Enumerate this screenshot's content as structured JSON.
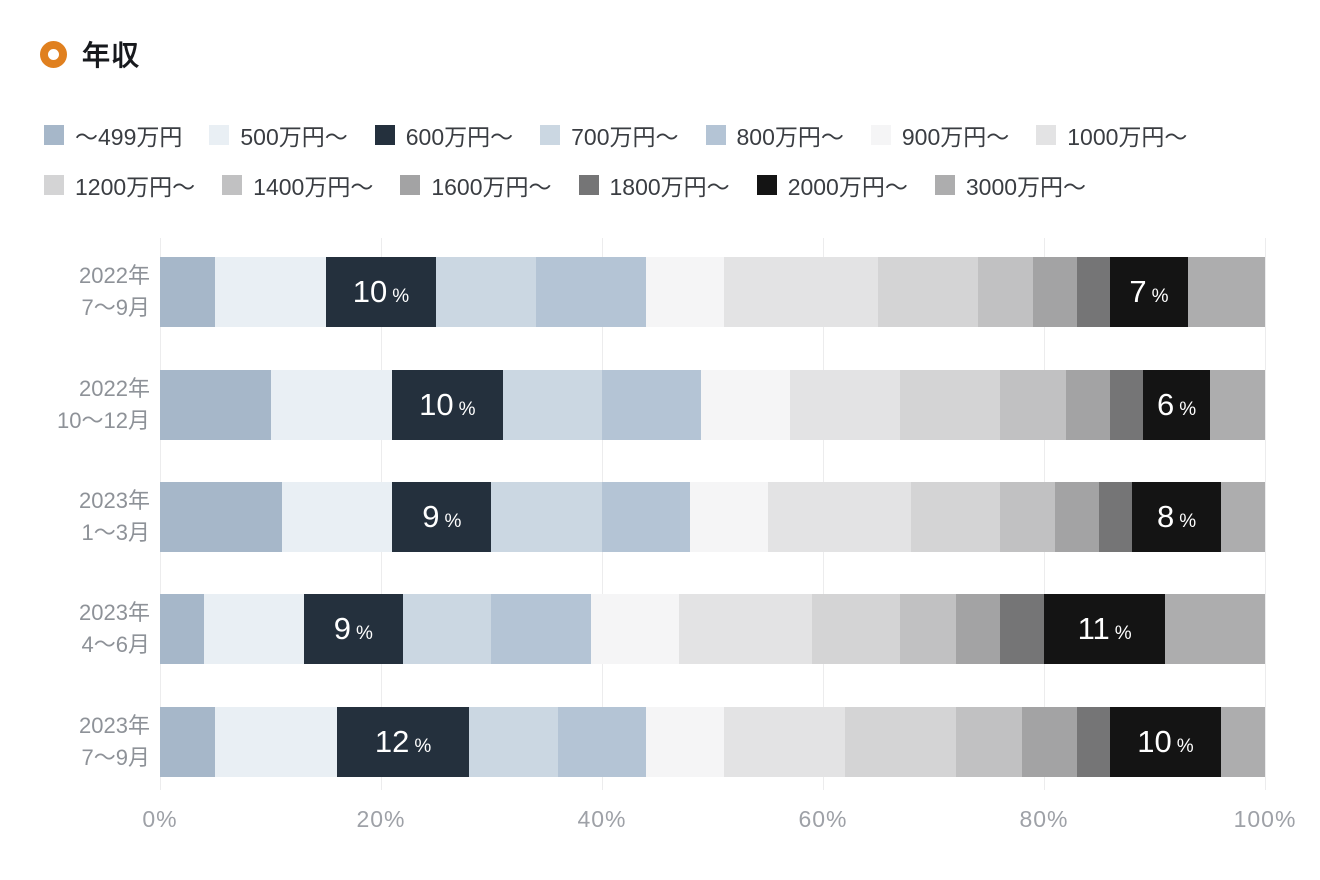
{
  "header": {
    "title": "年収",
    "icon": "ring-icon",
    "accent_color": "#E0801F"
  },
  "chart_data": {
    "type": "bar",
    "orientation": "horizontal",
    "stacked": true,
    "unit": "%",
    "legend_position": "top",
    "categories": [
      "〜499万円",
      "500万円〜",
      "600万円〜",
      "700万円〜",
      "800万円〜",
      "900万円〜",
      "1000万円〜",
      "1200万円〜",
      "1400万円〜",
      "1600万円〜",
      "1800万円〜",
      "2000万円〜",
      "3000万円〜"
    ],
    "colors": [
      "#A6B7C9",
      "#E9EFF4",
      "#24303D",
      "#CBD7E2",
      "#B4C4D5",
      "#F5F5F6",
      "#E3E3E4",
      "#D4D4D5",
      "#C1C1C2",
      "#A3A3A4",
      "#757576",
      "#141414",
      "#ADADAE"
    ],
    "labeled_categories": [
      "600万円〜",
      "2000万円〜"
    ],
    "value_label_suffix": "%",
    "rows": [
      {
        "label_lines": [
          "2022年",
          "7〜9月"
        ],
        "values": [
          5,
          10,
          10,
          9,
          10,
          7,
          14,
          9,
          5,
          4,
          3,
          7,
          7
        ]
      },
      {
        "label_lines": [
          "2022年",
          "10〜12月"
        ],
        "values": [
          10,
          11,
          10,
          9,
          9,
          8,
          10,
          9,
          6,
          4,
          3,
          6,
          5
        ]
      },
      {
        "label_lines": [
          "2023年",
          "1〜3月"
        ],
        "values": [
          11,
          10,
          9,
          10,
          8,
          7,
          13,
          8,
          5,
          4,
          3,
          8,
          4
        ]
      },
      {
        "label_lines": [
          "2023年",
          "4〜6月"
        ],
        "values": [
          4,
          9,
          9,
          8,
          9,
          8,
          12,
          8,
          5,
          4,
          4,
          11,
          9
        ]
      },
      {
        "label_lines": [
          "2023年",
          "7〜9月"
        ],
        "values": [
          5,
          11,
          12,
          8,
          8,
          7,
          11,
          10,
          6,
          5,
          3,
          10,
          4
        ]
      }
    ],
    "x_axis": {
      "range": [
        0,
        100
      ],
      "ticks": [
        "0%",
        "20%",
        "40%",
        "60%",
        "80%",
        "100%"
      ],
      "grid": true
    },
    "grid_color": "#ECECED"
  }
}
